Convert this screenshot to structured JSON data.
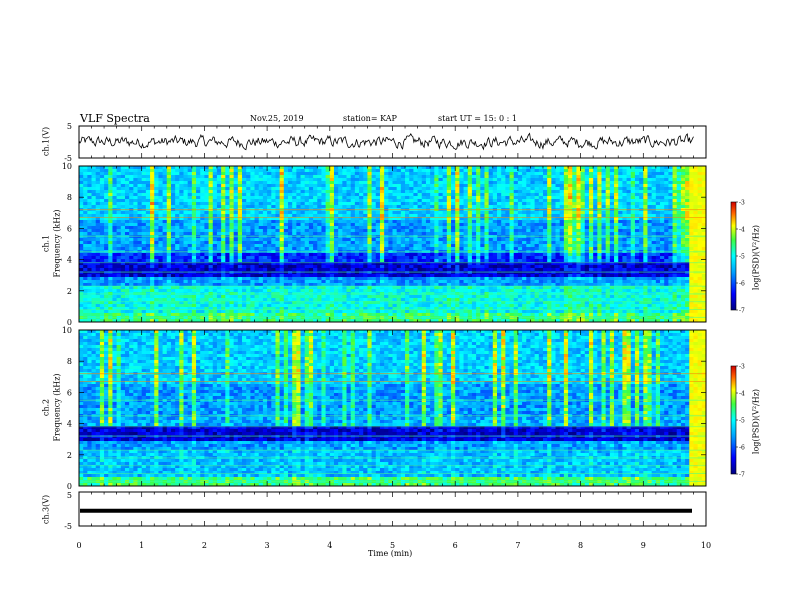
{
  "header": {
    "title": "VLF Spectra",
    "date": "Nov.25, 2019",
    "station": "station= KAP",
    "start": "start  UT =  15: 0  : 1"
  },
  "chart_data": [
    {
      "type": "line",
      "ylabel": "ch.1(V)",
      "ylim": [
        -5,
        5
      ],
      "yticks": [
        "5",
        "-5"
      ],
      "description_series": "noisy waveform fluctuating around 0 V",
      "xlim": [
        0,
        10
      ]
    },
    {
      "type": "heatmap",
      "ylabel": "ch.1",
      "ylabel2": "Frequency (kHz)",
      "ylim": [
        0,
        10
      ],
      "yticks": [
        "0",
        "2",
        "4",
        "6",
        "8",
        "10"
      ],
      "xlim": [
        0,
        10
      ],
      "colorbar": {
        "label": "log(PSD)(V²/Hz)",
        "range": [
          -7,
          -3
        ],
        "ticks": [
          "-3",
          "-4",
          "-5",
          "-6",
          "-7"
        ]
      }
    },
    {
      "type": "heatmap",
      "ylabel": "ch.2",
      "ylabel2": "Frequency (kHz)",
      "ylim": [
        0,
        10
      ],
      "yticks": [
        "0",
        "2",
        "4",
        "6",
        "8",
        "10"
      ],
      "xlim": [
        0,
        10
      ],
      "colorbar": {
        "label": "log(PSD)(V²/Hz)",
        "range": [
          -7,
          -3
        ],
        "ticks": [
          "-3",
          "-4",
          "-5",
          "-6",
          "-7"
        ]
      }
    },
    {
      "type": "line",
      "ylabel": "ch.3(V)",
      "ylim": [
        -5,
        5
      ],
      "yticks": [
        "5",
        "-5"
      ],
      "value": -0.5,
      "xlim": [
        0,
        10
      ],
      "xlabel": "Time (min)",
      "xticks": [
        "0",
        "1",
        "2",
        "3",
        "4",
        "5",
        "6",
        "7",
        "8",
        "9",
        "10"
      ]
    }
  ],
  "colors": {
    "low": "#00008b",
    "mid": "#00ff66",
    "high": "#ff0000"
  }
}
